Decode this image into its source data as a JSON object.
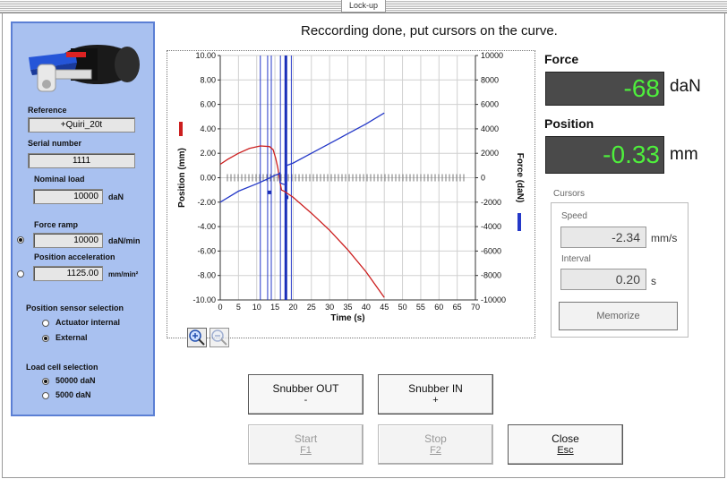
{
  "window": {
    "title": "Lock-up"
  },
  "left_panel": {
    "reference_label": "Reference",
    "reference_value": "+Quiri_20t",
    "serial_label": "Serial number",
    "serial_value": "1111",
    "nominal_label": "Nominal load",
    "nominal_value": "10000",
    "nominal_unit": "daN",
    "force_ramp_label": "Force ramp",
    "force_ramp_value": "10000",
    "force_ramp_unit": "daN/min",
    "force_ramp_selected": true,
    "pos_accel_label": "Position acceleration",
    "pos_accel_value": "1125.00",
    "pos_accel_unit": "mm/min²",
    "pos_accel_selected": false,
    "pos_sensor_label": "Position sensor selection",
    "pos_sensor_options": [
      "Actuator internal",
      "External"
    ],
    "pos_sensor_selected": "External",
    "load_cell_label": "Load cell selection",
    "load_cell_options": [
      "50000 daN",
      "5000 daN"
    ],
    "load_cell_selected": "50000 daN"
  },
  "message": "Reccording done, put cursors on the curve.",
  "chart_data": {
    "type": "line",
    "xlabel": "Time (s)",
    "ylabel_left": "Position (mm)",
    "ylabel_right": "Force (daN)",
    "xlim": [
      0,
      70
    ],
    "ylim_left": [
      -10,
      10
    ],
    "ylim_right": [
      -10000,
      10000
    ],
    "x_ticks": [
      "0",
      "5",
      "10",
      "15",
      "20",
      "25",
      "30",
      "35",
      "40",
      "45",
      "50",
      "55",
      "60",
      "65",
      "70"
    ],
    "y_left_ticks": [
      "10.00",
      "8.00",
      "6.00",
      "4.00",
      "2.00",
      "0.00",
      "-2.00",
      "-4.00",
      "-6.00",
      "-8.00",
      "-10.00"
    ],
    "y_right_ticks": [
      "10000",
      "8000",
      "6000",
      "4000",
      "2000",
      "0",
      "-2000",
      "-4000",
      "-6000",
      "-8000",
      "-10000"
    ],
    "grid": true,
    "series": [
      {
        "color": "#cc1e1e",
        "axis": "left",
        "x": [
          0,
          2,
          5,
          8,
          11,
          13.5,
          14.5,
          15.2,
          15.8,
          16.3,
          16.8,
          17.5,
          18.5,
          20,
          25,
          30,
          35,
          40,
          45
        ],
        "y": [
          1.1,
          1.5,
          2.0,
          2.4,
          2.6,
          2.55,
          2.3,
          1.6,
          0.8,
          -0.2,
          -1.0,
          -1.1,
          -1.3,
          -1.6,
          -2.9,
          -4.3,
          -5.9,
          -7.7,
          -9.8
        ]
      },
      {
        "color": "#2438c8",
        "axis": "right",
        "x": [
          0,
          5,
          10,
          13,
          15,
          16,
          16.4,
          16.4,
          17,
          18.2,
          18.2,
          20,
          25,
          30,
          35,
          40,
          45
        ],
        "y": [
          -2000,
          -1100,
          -500,
          -100,
          200,
          300,
          400,
          -400,
          -500,
          -600,
          1000,
          1200,
          2000,
          2800,
          3600,
          4400,
          5300
        ]
      }
    ],
    "cursor_lines_x": [
      11,
      13,
      14,
      16.5,
      18,
      19.5
    ],
    "active_cursor_x": 18
  },
  "force": {
    "title": "Force",
    "value": "-68",
    "unit": "daN"
  },
  "position": {
    "title": "Position",
    "value": "-0.33",
    "unit": "mm"
  },
  "cursors": {
    "title": "Cursors",
    "speed_label": "Speed",
    "speed_value": "-2.34",
    "speed_unit": "mm/s",
    "interval_label": "Interval",
    "interval_value": "0.20",
    "interval_unit": "s",
    "memorize_label": "Memorize"
  },
  "buttons": {
    "snubber_out": {
      "label": "Snubber OUT",
      "key": "-"
    },
    "snubber_in": {
      "label": "Snubber IN",
      "key": "+"
    },
    "start": {
      "label": "Start",
      "key": "F1"
    },
    "stop": {
      "label": "Stop",
      "key": "F2"
    },
    "close": {
      "label": "Close",
      "key": "Esc"
    }
  }
}
